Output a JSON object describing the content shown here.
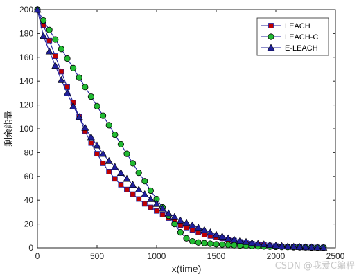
{
  "chart_data": {
    "type": "line",
    "title": "",
    "xlabel": "x(time)",
    "ylabel": "剩余能量",
    "xlim": [
      0,
      2500
    ],
    "ylim": [
      0,
      200
    ],
    "xticks": [
      "0",
      "500",
      "1000",
      "1500",
      "2000",
      "2500"
    ],
    "yticks": [
      "0",
      "20",
      "40",
      "60",
      "80",
      "100",
      "120",
      "140",
      "160",
      "180",
      "200"
    ],
    "grid": false,
    "legend_position": "top-right",
    "series": [
      {
        "name": "LEACH",
        "marker": "square",
        "color": "#c00000",
        "line_color": "#1f1f9a",
        "x": [
          0,
          50,
          100,
          150,
          200,
          250,
          300,
          350,
          400,
          450,
          500,
          550,
          600,
          650,
          700,
          750,
          800,
          850,
          900,
          950,
          1000,
          1050,
          1100,
          1150,
          1200,
          1250,
          1300,
          1350,
          1400,
          1450,
          1500,
          1550,
          1600,
          1650,
          1700,
          1750,
          1800,
          1850,
          1900,
          1950,
          2000,
          2050,
          2100,
          2150,
          2200,
          2250,
          2300,
          2350,
          2400
        ],
        "y": [
          200,
          187,
          174,
          161,
          148,
          135,
          122,
          110,
          98,
          88,
          79,
          71,
          64,
          58,
          53,
          49,
          45,
          41,
          37,
          34,
          31,
          28,
          25,
          22,
          19,
          17,
          15,
          13,
          11,
          10,
          9,
          8,
          7,
          6,
          5,
          4,
          3.5,
          3,
          2.5,
          2,
          1.5,
          1.2,
          1,
          0.8,
          0.6,
          0.5,
          0.4,
          0.3,
          0.2
        ]
      },
      {
        "name": "LEACH-C",
        "marker": "circle",
        "color": "#22bb33",
        "line_color": "#1f1f9a",
        "x": [
          0,
          50,
          100,
          150,
          200,
          250,
          300,
          350,
          400,
          450,
          500,
          550,
          600,
          650,
          700,
          750,
          800,
          850,
          900,
          950,
          1000,
          1050,
          1100,
          1150,
          1200,
          1250,
          1300,
          1350,
          1400,
          1450,
          1500,
          1550,
          1600,
          1650,
          1700,
          1750,
          1800,
          1850,
          1900,
          1950,
          2000,
          2050,
          2100,
          2150,
          2200,
          2250,
          2300,
          2350,
          2400
        ],
        "y": [
          200,
          191,
          183,
          175,
          167,
          159,
          151,
          143,
          135,
          127,
          119,
          111,
          103,
          95,
          87,
          79,
          71,
          63,
          56,
          48,
          41,
          34,
          27,
          20,
          13,
          8,
          5.5,
          4.5,
          4,
          3.5,
          3,
          2.8,
          2.5,
          2.2,
          2,
          1.8,
          1.6,
          1.4,
          1.2,
          1,
          0.9,
          0.8,
          0.7,
          0.6,
          0.5,
          0.4,
          0.3,
          0.25,
          0.2
        ]
      },
      {
        "name": "E-LEACH",
        "marker": "triangle",
        "color": "#1f1f9a",
        "line_color": "#1f1f9a",
        "x": [
          0,
          50,
          100,
          150,
          200,
          250,
          300,
          350,
          400,
          450,
          500,
          550,
          600,
          650,
          700,
          750,
          800,
          850,
          900,
          950,
          1000,
          1050,
          1100,
          1150,
          1200,
          1250,
          1300,
          1350,
          1400,
          1450,
          1500,
          1550,
          1600,
          1650,
          1700,
          1750,
          1800,
          1850,
          1900,
          1950,
          2000,
          2050,
          2100,
          2150,
          2200,
          2250,
          2300,
          2350,
          2400
        ],
        "y": [
          200,
          178,
          165,
          153,
          141,
          130,
          119,
          110,
          101,
          93,
          86,
          79,
          73,
          68,
          63,
          58,
          53,
          49,
          45,
          41,
          37,
          33,
          29,
          26,
          23,
          21,
          19,
          17,
          15,
          13,
          11,
          9.5,
          8,
          7,
          6,
          5,
          4.2,
          3.5,
          3,
          2.5,
          2,
          1.6,
          1.3,
          1,
          0.8,
          0.6,
          0.5,
          0.4,
          0.3
        ]
      }
    ]
  },
  "watermark": "CSDN @我爱C编程",
  "colors": {
    "axis": "#262626",
    "background": "#ffffff"
  }
}
